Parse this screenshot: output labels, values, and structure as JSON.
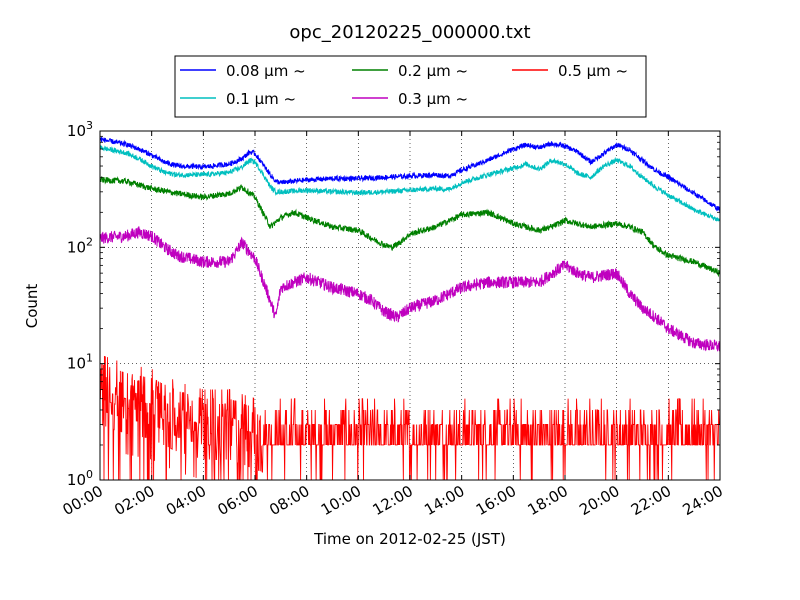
{
  "chart_data": {
    "type": "line",
    "title": "opc_20120225_000000.txt",
    "xlabel": "Time on 2012-02-25 (JST)",
    "ylabel": "Count",
    "xlim": [
      0,
      24
    ],
    "ylim": [
      1,
      1000
    ],
    "yscale": "log",
    "grid": true,
    "legend_position": "top",
    "x_ticks": [
      {
        "value": 0,
        "label": "00:00"
      },
      {
        "value": 2,
        "label": "02:00"
      },
      {
        "value": 4,
        "label": "04:00"
      },
      {
        "value": 6,
        "label": "06:00"
      },
      {
        "value": 8,
        "label": "08:00"
      },
      {
        "value": 10,
        "label": "10:00"
      },
      {
        "value": 12,
        "label": "12:00"
      },
      {
        "value": 14,
        "label": "14:00"
      },
      {
        "value": 16,
        "label": "16:00"
      },
      {
        "value": 18,
        "label": "18:00"
      },
      {
        "value": 20,
        "label": "20:00"
      },
      {
        "value": 22,
        "label": "22:00"
      },
      {
        "value": 24,
        "label": "24:00"
      }
    ],
    "y_ticks": [
      {
        "value": 1,
        "base": "10",
        "exp": "0"
      },
      {
        "value": 10,
        "base": "10",
        "exp": "1"
      },
      {
        "value": 100,
        "base": "10",
        "exp": "2"
      },
      {
        "value": 1000,
        "base": "10",
        "exp": "3"
      }
    ],
    "series": [
      {
        "name": "0.08 μm ~",
        "color": "#0000ff",
        "x": [
          0,
          1,
          1.5,
          2,
          2.5,
          3,
          4,
          5,
          5.5,
          5.8,
          6,
          6.3,
          6.6,
          6.8,
          7,
          8,
          9,
          10,
          11,
          12,
          13,
          13.5,
          14,
          15,
          16,
          16.5,
          17,
          17.5,
          18,
          18.5,
          19,
          19.5,
          20,
          20.5,
          21,
          21.5,
          22,
          23,
          24
        ],
        "y": [
          850,
          770,
          700,
          620,
          540,
          500,
          490,
          520,
          580,
          660,
          640,
          520,
          420,
          370,
          360,
          380,
          390,
          390,
          400,
          410,
          420,
          410,
          460,
          560,
          700,
          760,
          720,
          780,
          740,
          660,
          540,
          640,
          760,
          690,
          560,
          460,
          400,
          290,
          210
        ]
      },
      {
        "name": "0.1 μm ~",
        "color": "#00bfbf",
        "x": [
          0,
          1,
          1.5,
          2,
          2.5,
          3,
          4,
          5,
          5.5,
          5.8,
          6,
          6.3,
          6.6,
          6.8,
          7,
          8,
          9,
          10,
          11,
          12,
          13,
          13.5,
          14,
          15,
          16,
          16.5,
          17,
          17.5,
          18,
          18.5,
          19,
          19.5,
          20,
          20.5,
          21,
          21.5,
          22,
          23,
          24
        ],
        "y": [
          720,
          650,
          580,
          500,
          440,
          420,
          420,
          440,
          490,
          560,
          540,
          430,
          330,
          300,
          300,
          310,
          300,
          295,
          300,
          310,
          320,
          315,
          360,
          420,
          480,
          520,
          470,
          560,
          520,
          430,
          400,
          500,
          560,
          500,
          400,
          330,
          280,
          210,
          170
        ]
      },
      {
        "name": "0.2 μm ~",
        "color": "#008000",
        "x": [
          0,
          1,
          2,
          3,
          4,
          5,
          5.5,
          6,
          6.3,
          6.6,
          7,
          7.5,
          8,
          9,
          10,
          10.5,
          11,
          11.3,
          11.6,
          12,
          13,
          14,
          15,
          15.5,
          16,
          17,
          17.5,
          18,
          19,
          20,
          20.5,
          21,
          21.5,
          22,
          23,
          24
        ],
        "y": [
          380,
          370,
          320,
          290,
          270,
          290,
          330,
          270,
          200,
          150,
          180,
          200,
          180,
          150,
          140,
          120,
          105,
          100,
          110,
          130,
          150,
          190,
          200,
          180,
          160,
          140,
          150,
          170,
          150,
          160,
          150,
          135,
          100,
          85,
          75,
          60
        ]
      },
      {
        "name": "0.3 μm ~",
        "color": "#bf00bf",
        "x": [
          0,
          1,
          1.5,
          2,
          2.5,
          3,
          4,
          5,
          5.5,
          6,
          6.2,
          6.5,
          6.8,
          7,
          7.5,
          8,
          9,
          10,
          10.5,
          11,
          11.5,
          12,
          13,
          14,
          15,
          16,
          17,
          17.5,
          18,
          18.5,
          19,
          20,
          20.5,
          21,
          21.5,
          22,
          23,
          24
        ],
        "y": [
          120,
          125,
          135,
          125,
          100,
          85,
          75,
          75,
          110,
          80,
          60,
          40,
          25,
          45,
          50,
          55,
          45,
          40,
          35,
          28,
          25,
          30,
          35,
          45,
          50,
          50,
          50,
          60,
          70,
          60,
          55,
          60,
          40,
          30,
          25,
          20,
          15,
          14
        ]
      },
      {
        "name": "0.5 μm ~",
        "color": "#ff0000",
        "x": [
          0,
          1,
          2,
          3,
          4,
          5,
          6,
          7,
          8,
          9,
          10,
          11,
          12,
          13,
          14,
          15,
          16,
          17,
          18,
          19,
          20,
          21,
          22,
          23,
          24
        ],
        "y": [
          6,
          5,
          4.5,
          3.5,
          3,
          3,
          2.5,
          2,
          2,
          2,
          2,
          2,
          2,
          2,
          2,
          2,
          2.5,
          2.5,
          2.5,
          2.5,
          2,
          2,
          2,
          2,
          2
        ]
      }
    ]
  }
}
